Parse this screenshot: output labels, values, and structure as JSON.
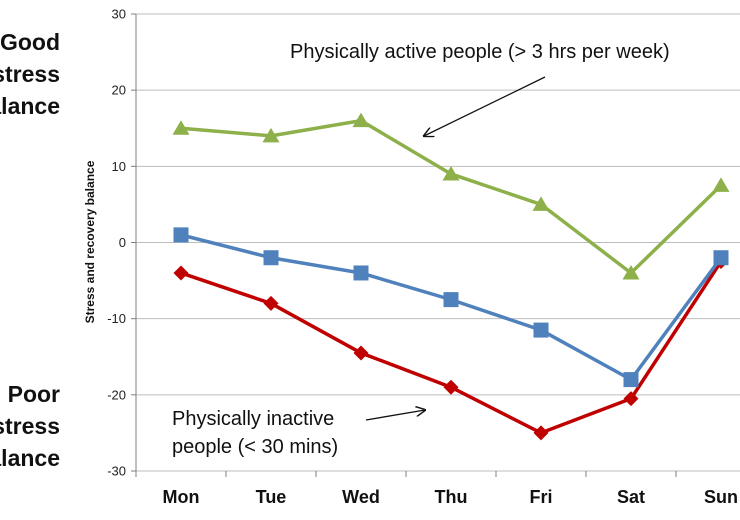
{
  "side_labels": {
    "good": [
      "Good",
      "stress",
      "balance"
    ],
    "poor": [
      "Poor",
      "stress",
      "balance"
    ]
  },
  "annotations": {
    "active": "Physically active people (> 3 hrs per week)",
    "inactive": [
      "Physically inactive",
      "people (< 30 mins)"
    ]
  },
  "chart_data": {
    "type": "line",
    "title": "",
    "xlabel": "",
    "ylabel": "Stress and recovery balance",
    "categories": [
      "Mon",
      "Tue",
      "Wed",
      "Thu",
      "Fri",
      "Sat",
      "Sun"
    ],
    "ylim": [
      -30,
      30
    ],
    "yticks": [
      30,
      20,
      10,
      0,
      -10,
      -20,
      -30
    ],
    "grid": true,
    "series": [
      {
        "key": "active",
        "color": "#8db04a",
        "marker": "triangle",
        "values": [
          15,
          14,
          16,
          9,
          5,
          -4,
          7.5
        ]
      },
      {
        "key": "middle",
        "color": "#4f81bd",
        "marker": "square",
        "values": [
          1,
          -2,
          -4,
          -7.5,
          -11.5,
          -18,
          -2
        ]
      },
      {
        "key": "inactive",
        "color": "#c00000",
        "marker": "diamond",
        "values": [
          -4,
          -8,
          -14.5,
          -19,
          -25,
          -20.5,
          -2.5
        ]
      }
    ]
  }
}
